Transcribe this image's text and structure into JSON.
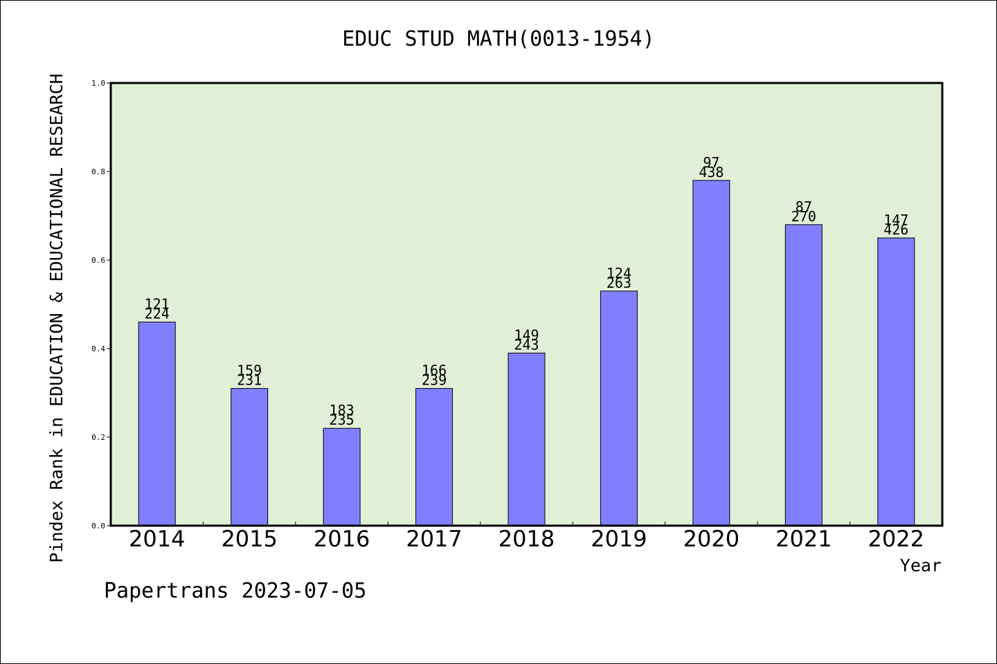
{
  "chart_data": {
    "type": "bar",
    "title": "EDUC STUD MATH(0013-1954)",
    "xlabel": "Year",
    "ylabel": "Pindex Rank in EDUCATION & EDUCATIONAL RESEARCH",
    "ylim": [
      0,
      1.0
    ],
    "yticks": [
      "0.0",
      "0.2",
      "0.4",
      "0.6",
      "0.8",
      "1.0"
    ],
    "categories": [
      "2014",
      "2015",
      "2016",
      "2017",
      "2018",
      "2019",
      "2020",
      "2021",
      "2022"
    ],
    "values": [
      0.46,
      0.31,
      0.22,
      0.31,
      0.39,
      0.53,
      0.78,
      0.68,
      0.65
    ],
    "labels_top": [
      "121",
      "159",
      "183",
      "166",
      "149",
      "124",
      "97",
      "87",
      "147"
    ],
    "labels_bottom": [
      "224",
      "231",
      "235",
      "239",
      "243",
      "263",
      "438",
      "270",
      "426"
    ],
    "grid": false,
    "colors": {
      "bar": "#8080ff",
      "plot_bg": "#e2efd6"
    }
  },
  "footer": "Papertrans 2023-07-05"
}
